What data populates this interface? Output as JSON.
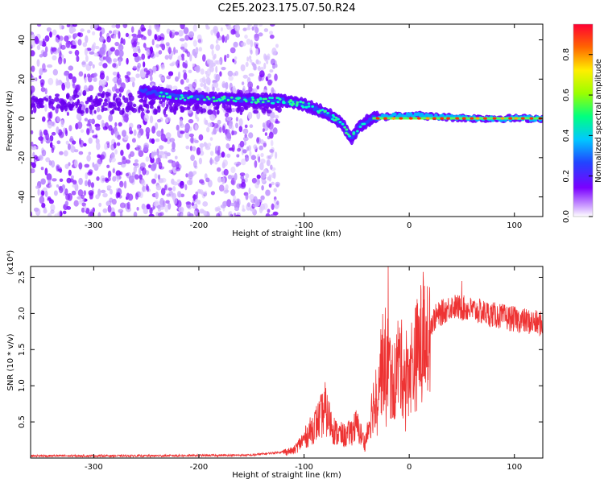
{
  "chart_data": [
    {
      "type": "heatmap",
      "title": "C2E5.2023.175.07.50.R24",
      "xlabel": "Height of straight line (km)",
      "ylabel": "Frequency (Hz)",
      "xlim": [
        -360,
        127
      ],
      "ylim": [
        -50,
        48
      ],
      "x_ticks": [
        -300,
        -200,
        -100,
        0,
        100
      ],
      "y_ticks": [
        -40,
        -20,
        0,
        20,
        40
      ],
      "colorbar": {
        "label": "Normalized spectral amplitude",
        "range": [
          0,
          0.95
        ],
        "ticks": [
          0.0,
          0.2,
          0.4,
          0.6,
          0.8
        ],
        "colormap": "rainbow-purple-to-red"
      },
      "ridge": {
        "description_points": [
          [
            -255,
            14
          ],
          [
            -220,
            11
          ],
          [
            -180,
            10
          ],
          [
            -140,
            9
          ],
          [
            -120,
            9
          ],
          [
            -100,
            7
          ],
          [
            -80,
            3
          ],
          [
            -65,
            -2
          ],
          [
            -55,
            -10
          ],
          [
            -45,
            -3
          ],
          [
            -35,
            0
          ],
          [
            -20,
            1
          ],
          [
            0,
            2
          ],
          [
            20,
            1
          ],
          [
            60,
            0
          ],
          [
            127,
            0
          ]
        ]
      },
      "noise_region_x": [
        -360,
        -125
      ],
      "grid": false
    },
    {
      "type": "line",
      "xlabel": "Height of straight line (km)",
      "ylabel": "SNR (10 * v/v)",
      "y_multiplier": "(x10⁴)",
      "xlim": [
        -360,
        127
      ],
      "ylim": [
        0,
        2.65
      ],
      "x_ticks": [
        -300,
        -200,
        -100,
        0,
        100
      ],
      "y_ticks": [
        0.5,
        1.0,
        1.5,
        2.0,
        2.5
      ],
      "color": "#ee3333",
      "envelope": [
        {
          "x": -360,
          "y": 0.03
        },
        {
          "x": -250,
          "y": 0.03
        },
        {
          "x": -150,
          "y": 0.04
        },
        {
          "x": -110,
          "y": 0.1
        },
        {
          "x": -95,
          "y": 0.35
        },
        {
          "x": -80,
          "y": 0.65
        },
        {
          "x": -70,
          "y": 0.35
        },
        {
          "x": -60,
          "y": 0.3
        },
        {
          "x": -50,
          "y": 0.45
        },
        {
          "x": -42,
          "y": 0.2
        },
        {
          "x": -35,
          "y": 0.7
        },
        {
          "x": -28,
          "y": 1.2
        },
        {
          "x": -22,
          "y": 1.4
        },
        {
          "x": -15,
          "y": 1.0
        },
        {
          "x": -10,
          "y": 1.35
        },
        {
          "x": -5,
          "y": 1.15
        },
        {
          "x": 5,
          "y": 1.35
        },
        {
          "x": 15,
          "y": 1.75
        },
        {
          "x": 25,
          "y": 1.95
        },
        {
          "x": 40,
          "y": 2.1
        },
        {
          "x": 60,
          "y": 2.05
        },
        {
          "x": 80,
          "y": 1.98
        },
        {
          "x": 100,
          "y": 1.92
        },
        {
          "x": 127,
          "y": 1.85
        }
      ],
      "spikes": [
        {
          "x": -20,
          "y": 2.65
        },
        {
          "x": -80,
          "y": 1.05
        },
        {
          "x": 50,
          "y": 2.45
        }
      ],
      "grid": false
    }
  ]
}
